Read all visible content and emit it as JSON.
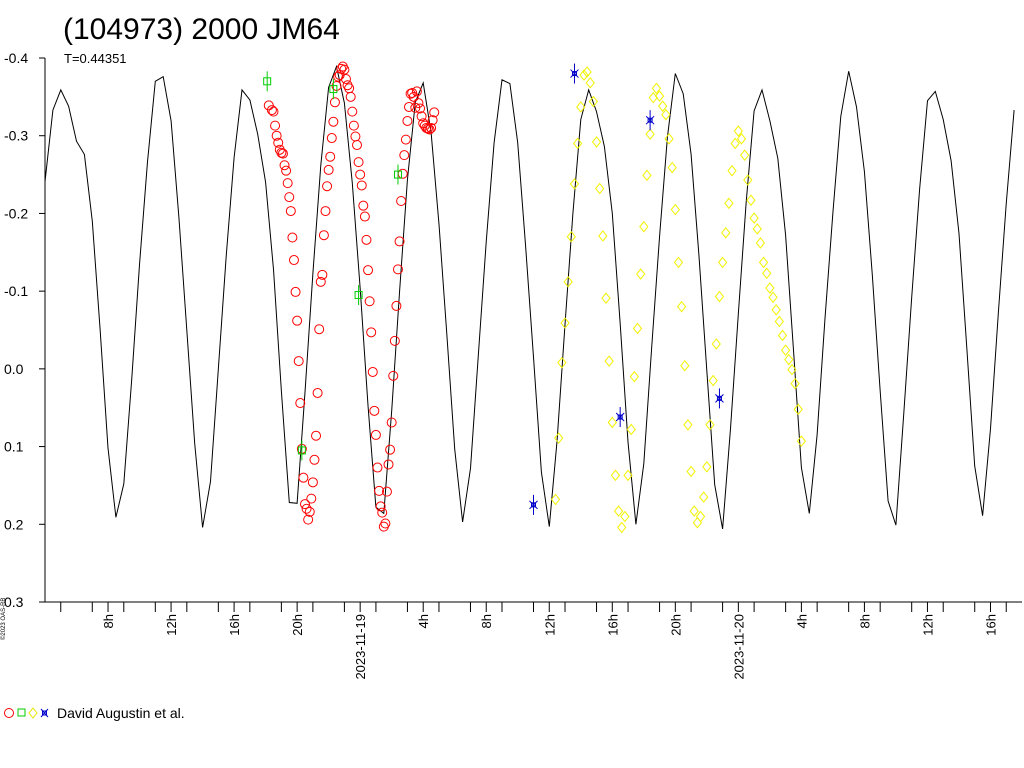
{
  "chart_data": {
    "type": "scatter",
    "title": "(104973) 2000 JM64",
    "subtitle": "T=0.44351",
    "corner_label": "©2023 OAS-RB",
    "xlabel": "",
    "ylabel": "",
    "ylim": [
      -0.4,
      0.3
    ],
    "y_inverted": true,
    "y_ticks": [
      "-0.4",
      "-0.3",
      "-0.2",
      "-0.1",
      "0.0",
      "0.1",
      "0.2",
      "0.3"
    ],
    "x_ticks": [
      "8h",
      "12h",
      "16h",
      "20h",
      "2023-11-19",
      "4h",
      "8h",
      "12h",
      "16h",
      "20h",
      "2023-11-20",
      "4h",
      "8h",
      "12h",
      "16h"
    ],
    "legend": {
      "text": "David Augustin et al.",
      "placement": "bottom-left"
    },
    "grid": false,
    "model_curve": {
      "name": "",
      "x_hours": [
        4.0,
        4.5,
        5.0,
        5.5,
        6.0,
        6.5,
        7.0,
        7.5,
        8.0,
        8.5,
        9.0,
        9.5,
        10.0,
        10.5,
        11.0,
        11.5,
        12.0,
        12.5,
        13.0,
        13.5,
        14.0,
        14.5,
        15.0,
        15.5,
        16.0,
        16.5,
        17.0,
        17.5,
        18.0,
        18.5,
        19.0,
        19.5,
        20.0,
        20.5,
        21.0,
        21.5,
        22.0,
        22.5,
        23.0,
        23.5,
        24.0,
        24.5,
        25.0,
        25.5,
        26.0,
        26.5,
        27.0,
        27.5,
        28.0,
        28.5,
        29.0,
        29.5,
        30.0,
        30.5,
        31.0,
        31.5,
        32.0,
        32.5,
        33.0,
        33.5,
        34.0,
        34.5,
        35.0,
        35.5,
        36.0,
        36.5,
        37.0,
        37.5,
        38.0,
        38.5,
        39.0,
        39.5,
        40.0,
        40.5,
        41.0,
        41.5,
        42.0,
        42.5,
        43.0,
        43.5,
        44.0,
        44.5,
        45.0,
        45.5,
        46.0,
        46.5,
        47.0,
        47.5,
        48.0,
        48.5,
        49.0,
        49.5,
        50.0,
        50.5,
        51.0,
        51.5,
        52.0,
        52.5,
        53.0,
        53.5,
        54.0,
        54.5,
        55.0,
        55.5,
        56.0,
        56.5,
        57.0,
        57.5,
        58.0,
        58.5,
        59.0,
        59.5,
        60.0,
        60.5,
        61.0,
        61.5,
        62.0,
        62.5,
        63.0,
        63.5,
        64.0,
        64.5,
        65.0,
        65.5
      ],
      "y": [
        -0.241,
        -0.333,
        -0.359,
        -0.338,
        -0.293,
        -0.276,
        -0.19,
        -0.049,
        0.102,
        0.191,
        0.148,
        0.014,
        -0.134,
        -0.265,
        -0.37,
        -0.376,
        -0.319,
        -0.195,
        -0.05,
        0.096,
        0.204,
        0.145,
        0.001,
        -0.145,
        -0.272,
        -0.359,
        -0.346,
        -0.302,
        -0.24,
        -0.128,
        0.029,
        0.172,
        0.173,
        0.03,
        -0.123,
        -0.262,
        -0.362,
        -0.389,
        -0.342,
        -0.239,
        -0.103,
        0.047,
        0.178,
        0.186,
        0.054,
        -0.1,
        -0.243,
        -0.343,
        -0.368,
        -0.304,
        -0.186,
        -0.045,
        0.103,
        0.197,
        0.128,
        -0.017,
        -0.163,
        -0.291,
        -0.372,
        -0.367,
        -0.291,
        -0.158,
        -0.015,
        0.133,
        0.203,
        0.092,
        -0.057,
        -0.2,
        -0.321,
        -0.359,
        -0.331,
        -0.286,
        -0.2,
        -0.058,
        0.094,
        0.2,
        0.122,
        -0.028,
        -0.171,
        -0.298,
        -0.38,
        -0.354,
        -0.276,
        -0.145,
        0.002,
        0.149,
        0.206,
        0.077,
        -0.072,
        -0.215,
        -0.332,
        -0.359,
        -0.319,
        -0.271,
        -0.172,
        -0.024,
        0.127,
        0.186,
        0.085,
        -0.065,
        -0.201,
        -0.325,
        -0.383,
        -0.337,
        -0.254,
        -0.121,
        0.029,
        0.17,
        0.201,
        0.057,
        -0.092,
        -0.231,
        -0.345,
        -0.357,
        -0.321,
        -0.268,
        -0.174,
        -0.027,
        0.125,
        0.189,
        0.077,
        -0.073,
        -0.212,
        -0.333
      ]
    },
    "series": [
      {
        "color": "#ff0000",
        "marker": "circle",
        "x_hours": [
          18.2,
          18.4,
          18.5,
          18.6,
          18.7,
          18.8,
          18.9,
          19.0,
          19.1,
          19.2,
          19.3,
          19.4,
          19.5,
          19.6,
          19.7,
          19.8,
          19.9,
          20.0,
          20.1,
          20.2,
          20.3,
          20.4,
          20.5,
          20.6,
          20.7,
          20.8,
          20.9,
          21.0,
          21.1,
          21.2,
          21.3,
          21.4,
          21.5,
          21.6,
          21.7,
          21.8,
          21.9,
          22.0,
          22.1,
          22.2,
          22.3,
          22.4,
          22.5,
          22.6,
          22.7,
          22.8,
          22.9,
          23.0,
          23.1,
          23.2,
          23.3,
          23.4,
          23.5,
          23.6,
          23.7,
          23.8,
          23.9,
          24.0,
          24.1,
          24.2,
          24.3,
          24.4,
          24.5,
          24.6,
          24.7,
          24.8,
          24.9,
          25.0,
          25.1,
          25.2,
          25.3,
          25.4,
          25.5,
          25.6,
          25.7,
          25.8,
          25.9,
          26.0,
          26.1,
          26.2,
          26.3,
          26.4,
          26.5,
          26.6,
          26.7,
          26.8,
          26.9,
          27.0,
          27.1,
          27.2,
          27.3,
          27.4,
          27.5,
          27.6,
          27.7,
          27.8,
          27.9,
          28.0,
          28.1,
          28.2,
          28.3,
          28.4,
          28.5,
          28.6,
          28.7
        ],
        "y": [
          -0.339,
          -0.333,
          -0.331,
          -0.313,
          -0.3,
          -0.291,
          -0.282,
          -0.278,
          -0.277,
          -0.262,
          -0.255,
          -0.239,
          -0.221,
          -0.203,
          -0.169,
          -0.14,
          -0.099,
          -0.062,
          -0.01,
          0.044,
          0.103,
          0.14,
          0.174,
          0.18,
          0.194,
          0.184,
          0.167,
          0.146,
          0.117,
          0.086,
          0.031,
          -0.051,
          -0.112,
          -0.121,
          -0.172,
          -0.203,
          -0.235,
          -0.256,
          -0.273,
          -0.297,
          -0.318,
          -0.343,
          -0.364,
          -0.376,
          -0.378,
          -0.386,
          -0.389,
          -0.385,
          -0.373,
          -0.365,
          -0.361,
          -0.35,
          -0.331,
          -0.313,
          -0.299,
          -0.288,
          -0.266,
          -0.25,
          -0.236,
          -0.21,
          -0.196,
          -0.166,
          -0.127,
          -0.087,
          -0.047,
          0.004,
          0.054,
          0.085,
          0.127,
          0.157,
          0.177,
          0.185,
          0.203,
          0.199,
          0.158,
          0.123,
          0.104,
          0.069,
          0.009,
          -0.036,
          -0.081,
          -0.128,
          -0.164,
          -0.216,
          -0.251,
          -0.275,
          -0.295,
          -0.319,
          -0.337,
          -0.354,
          -0.355,
          -0.35,
          -0.336,
          -0.357,
          -0.342,
          -0.335,
          -0.325,
          -0.316,
          -0.313,
          -0.31,
          -0.309,
          -0.308,
          -0.31,
          -0.32,
          -0.33
        ]
      },
      {
        "color": "#00cc00",
        "marker": "square",
        "x_hours": [
          18.1,
          20.3,
          22.3,
          23.9,
          26.4
        ],
        "y": [
          -0.37,
          0.105,
          -0.36,
          -0.095,
          -0.25
        ]
      },
      {
        "color": "#ffff00",
        "marker": "diamond",
        "x_hours": [
          36.4,
          36.6,
          36.8,
          37.0,
          37.2,
          37.4,
          37.6,
          37.8,
          38.0,
          38.2,
          38.4,
          38.6,
          38.8,
          39.0,
          39.2,
          39.4,
          39.6,
          39.8,
          40.0,
          40.2,
          40.4,
          40.6,
          40.8,
          41.0,
          41.2,
          41.4,
          41.6,
          41.8,
          42.0,
          42.2,
          42.4,
          42.6,
          42.8,
          43.0,
          43.2,
          43.4,
          43.6,
          43.8,
          44.0,
          44.2,
          44.4,
          44.6,
          44.8,
          45.0,
          45.2,
          45.4,
          45.6,
          45.8,
          46.0,
          46.2,
          46.4,
          46.6,
          46.8,
          47.0,
          47.2,
          47.4,
          47.6,
          47.8,
          48.0,
          48.2,
          48.4,
          48.6,
          48.8,
          49.0,
          49.2,
          49.4,
          49.6,
          49.8,
          50.0,
          50.2,
          50.4,
          50.6,
          50.8,
          51.0,
          51.2,
          51.4,
          51.6,
          51.8,
          52.0
        ],
        "y": [
          0.168,
          0.089,
          -0.008,
          -0.059,
          -0.112,
          -0.17,
          -0.238,
          -0.29,
          -0.337,
          -0.378,
          -0.382,
          -0.368,
          -0.344,
          -0.292,
          -0.232,
          -0.171,
          -0.091,
          -0.01,
          0.069,
          0.137,
          0.183,
          0.204,
          0.19,
          0.137,
          0.078,
          0.01,
          -0.052,
          -0.122,
          -0.183,
          -0.249,
          -0.302,
          -0.349,
          -0.361,
          -0.351,
          -0.338,
          -0.327,
          -0.296,
          -0.259,
          -0.205,
          -0.137,
          -0.08,
          -0.004,
          0.072,
          0.132,
          0.183,
          0.198,
          0.19,
          0.165,
          0.126,
          0.072,
          0.015,
          -0.032,
          -0.093,
          -0.137,
          -0.175,
          -0.213,
          -0.255,
          -0.29,
          -0.306,
          -0.296,
          -0.275,
          -0.243,
          -0.217,
          -0.194,
          -0.18,
          -0.162,
          -0.137,
          -0.123,
          -0.104,
          -0.092,
          -0.076,
          -0.061,
          -0.043,
          -0.024,
          -0.012,
          0.001,
          0.019,
          0.052,
          0.093
        ]
      },
      {
        "color": "#0000cc",
        "marker": "cross-box",
        "x_hours": [
          35.0,
          37.6,
          40.5,
          42.4,
          46.8
        ],
        "y": [
          0.175,
          -0.38,
          0.062,
          -0.32,
          0.038
        ]
      }
    ]
  }
}
